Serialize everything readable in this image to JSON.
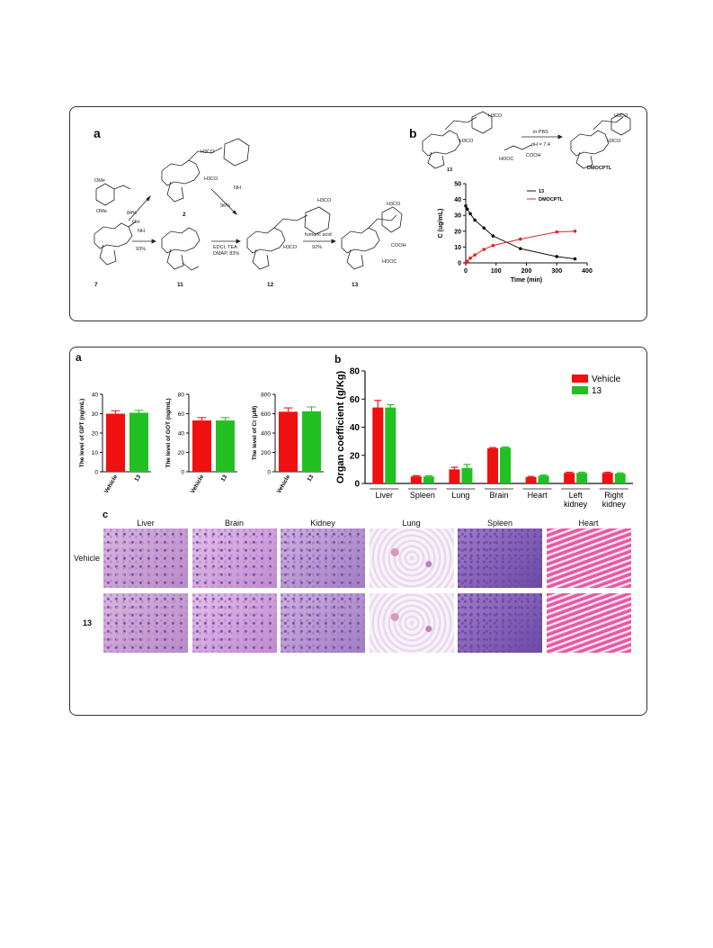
{
  "figure_top": {
    "label_a": "a",
    "label_b": "b",
    "scheme": {
      "reagent_start": "OMe",
      "reagent_start2": "OMe",
      "yield_84": "84%",
      "yield_93": "93%",
      "yield_96": "96%",
      "yield_83": "EDCI, TEA\nDMAP, 83%",
      "edci": "EDCI, TEA",
      "dmap": "DMAP, 83%",
      "fumaric": "fumaric acid",
      "yield_92": "92%",
      "nh": "NH",
      "cmp7": "7",
      "cmp11": "11",
      "cmp2": "2",
      "cmp12": "12",
      "cmp13": "13",
      "h3co": "H3CO",
      "cooh": "COOH",
      "hooc": "HOOC",
      "oh": "OH"
    },
    "conversion": {
      "cond1": "in PBS",
      "cond2": "pH = 7.4",
      "product": "DMOCPTL",
      "cmp13": "13",
      "h3co": "H3CO",
      "hooc": "HOOC",
      "cooh": "COOH"
    }
  },
  "chart_pk": {
    "type": "line",
    "xlabel": "Time (min)",
    "ylabel": "C (ug/mL)",
    "xlim": [
      0,
      400
    ],
    "ylim": [
      0,
      50
    ],
    "xticks": [
      "0",
      "100",
      "200",
      "300",
      "400"
    ],
    "yticks": [
      "0",
      "10",
      "20",
      "30",
      "40",
      "50"
    ],
    "legend_position": "top-right",
    "series": [
      {
        "name": "13",
        "color": "#111111",
        "x": [
          0,
          5,
          15,
          30,
          60,
          90,
          180,
          300,
          360
        ],
        "y": [
          36,
          34,
          31,
          27,
          22,
          17,
          9,
          4,
          2.5
        ]
      },
      {
        "name": "DMOCPTL",
        "color": "#e32222",
        "x": [
          0,
          5,
          15,
          30,
          60,
          90,
          180,
          300,
          360
        ],
        "y": [
          0,
          1,
          3,
          5,
          8.5,
          11,
          15,
          19.5,
          20
        ]
      }
    ]
  },
  "figure_bottom": {
    "label_a": "a",
    "label_b": "b",
    "label_c": "c"
  },
  "chart_data": [
    {
      "type": "bar",
      "ylabel": "The level of GPT (ng/mL)",
      "categories": [
        "Vehicle",
        "13"
      ],
      "values": [
        30,
        30.5
      ],
      "errors": [
        1.5,
        1.2
      ],
      "colors": [
        "#f01010",
        "#22c022"
      ],
      "ylim": [
        0,
        40
      ],
      "yticks": [
        "0",
        "10",
        "20",
        "30",
        "40"
      ]
    },
    {
      "type": "bar",
      "ylabel": "The level of GOT (ng/mL)",
      "categories": [
        "Vehicle",
        "13"
      ],
      "values": [
        53,
        53
      ],
      "errors": [
        3,
        3
      ],
      "colors": [
        "#f01010",
        "#22c022"
      ],
      "ylim": [
        0,
        80
      ],
      "yticks": [
        "0",
        "20",
        "40",
        "60",
        "80"
      ]
    },
    {
      "type": "bar",
      "ylabel": "The level of Cr (μM)",
      "categories": [
        "Vehicle",
        "13"
      ],
      "values": [
        620,
        625
      ],
      "errors": [
        40,
        45
      ],
      "colors": [
        "#f01010",
        "#22c022"
      ],
      "ylim": [
        0,
        800
      ],
      "yticks": [
        "0",
        "200",
        "400",
        "600",
        "800"
      ]
    },
    {
      "type": "bar",
      "ylabel": "Organ coefficient (g/Kg)",
      "categories": [
        "Liver",
        "Spleen",
        "Lung",
        "Brain",
        "Heart",
        "Left kidney",
        "Right kidney"
      ],
      "series": [
        {
          "name": "Vehicle",
          "color": "#f01010",
          "values": [
            54,
            5,
            10,
            25,
            4.5,
            7.5,
            7.5
          ],
          "errors": [
            5,
            0.5,
            1.5,
            0.5,
            0.5,
            0.5,
            0.5
          ]
        },
        {
          "name": "13",
          "color": "#22c022",
          "values": [
            54,
            5,
            11,
            25.5,
            5.5,
            7.5,
            7
          ],
          "errors": [
            2,
            0.5,
            2.5,
            0.5,
            0.5,
            0.5,
            0.5
          ]
        }
      ],
      "ylim": [
        0,
        80
      ],
      "yticks": [
        "0",
        "20",
        "40",
        "60",
        "80"
      ],
      "legend_position": "top-right"
    }
  ],
  "histology": {
    "columns": [
      "Liver",
      "Brain",
      "Kidney",
      "Lung",
      "Spleen",
      "Heart"
    ],
    "rows": [
      "Vehicle",
      "13"
    ]
  }
}
